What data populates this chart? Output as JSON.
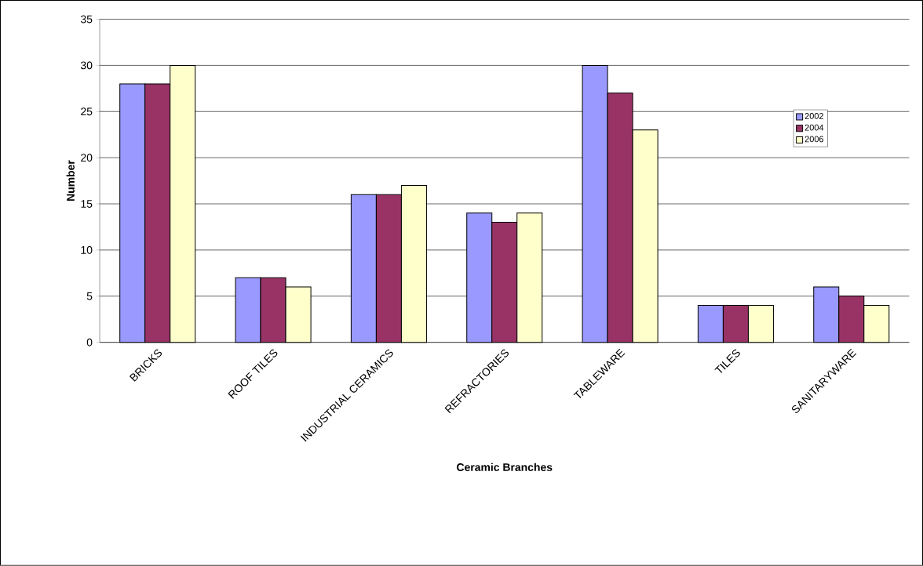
{
  "chart_data": {
    "type": "bar",
    "xlabel": "Ceramic Branches",
    "ylabel": "Number",
    "categories": [
      "BRICKS",
      "ROOF TILES",
      "INDUSTRIAL CERAMICS",
      "REFRACTORIES",
      "TABLEWARE",
      "TILES",
      "SANITARYWARE"
    ],
    "series": [
      {
        "name": "2002",
        "color": "#9999ff",
        "values": [
          28,
          7,
          16,
          14,
          30,
          4,
          6
        ]
      },
      {
        "name": "2004",
        "color": "#993366",
        "values": [
          28,
          7,
          16,
          13,
          27,
          4,
          5
        ]
      },
      {
        "name": "2006",
        "color": "#ffffcc",
        "values": [
          30,
          6,
          17,
          14,
          23,
          4,
          4
        ]
      }
    ],
    "ylim": [
      0,
      35
    ],
    "yticks": [
      0,
      5,
      10,
      15,
      20,
      25,
      30,
      35
    ],
    "grid": "y",
    "legend": "right"
  }
}
